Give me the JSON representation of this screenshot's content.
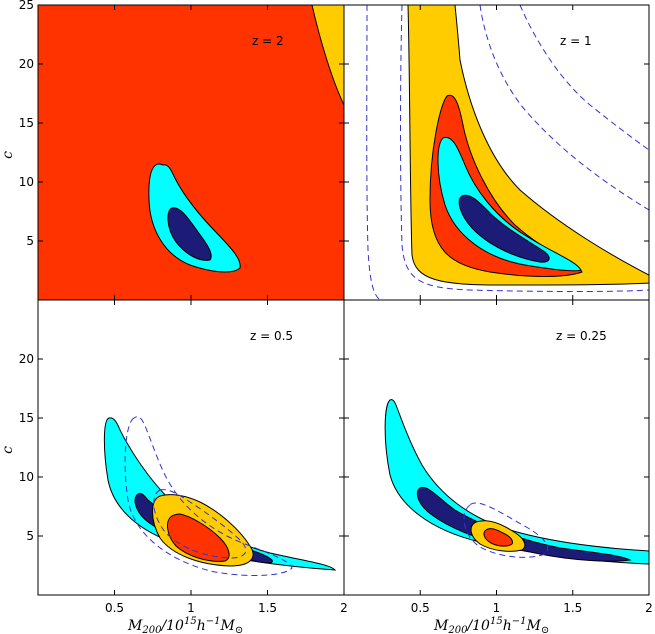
{
  "chart_data": {
    "type": "contour",
    "xlabel": {
      "main": "M",
      "sub": "200",
      "mid": "/10",
      "sup": "15",
      "rest": "h",
      "sup2": "−1",
      "tail": "M",
      "sub2": "⊙"
    },
    "ylabel": "c",
    "xlim": [
      0,
      2
    ],
    "ylim": [
      0,
      25
    ],
    "x_ticks": [
      "0.5",
      "1",
      "1.5",
      "2"
    ],
    "y_ticks_top": [
      "5",
      "10",
      "15",
      "20",
      "25"
    ],
    "y_ticks_bottom": [
      "5",
      "10",
      "15",
      "20"
    ],
    "colors": {
      "navy": "#1c1c78",
      "cyan": "#00ffff",
      "red": "#ff3300",
      "orange": "#ffcc00",
      "dash": "#3333cc"
    },
    "panels": [
      {
        "label": "z = 2",
        "position": "top-left"
      },
      {
        "label": "z = 1",
        "position": "top-right"
      },
      {
        "label": "z = 0.5",
        "position": "bottom-left"
      },
      {
        "label": "z = 0.25",
        "position": "bottom-right"
      }
    ]
  }
}
